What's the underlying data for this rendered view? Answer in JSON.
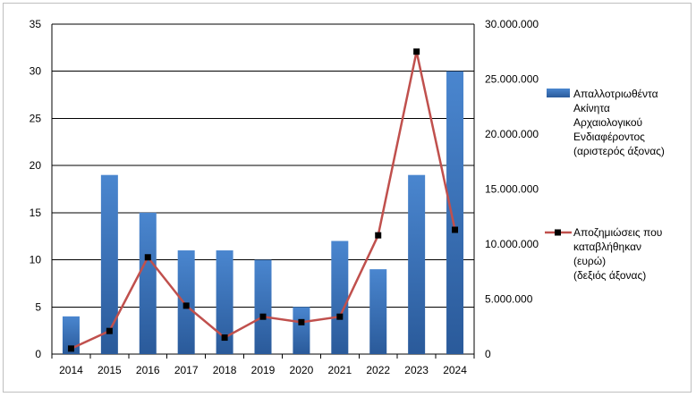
{
  "chart_data": {
    "type": "bar",
    "categories": [
      "2014",
      "2015",
      "2016",
      "2017",
      "2018",
      "2019",
      "2020",
      "2021",
      "2022",
      "2023",
      "2024"
    ],
    "series": [
      {
        "name": "Απαλλοτριωθέντα Ακίνητα Αρχαιολογικού Ενδιαφέροντος (αριστερός άξονας)",
        "type": "bar",
        "axis": "left",
        "values": [
          4,
          19,
          15,
          11,
          11,
          10,
          5,
          12,
          9,
          19,
          30
        ]
      },
      {
        "name": "Αποζημιώσεις που καταβλήθηκαν (ευρώ) (δεξιός άξονας)",
        "type": "line",
        "axis": "right",
        "values": [
          500000,
          2100000,
          8800000,
          4400000,
          1500000,
          3400000,
          2900000,
          3400000,
          10800000,
          27500000,
          11300000
        ]
      }
    ],
    "left_axis": {
      "min": 0,
      "max": 35,
      "ticks": [
        "0",
        "5",
        "10",
        "15",
        "20",
        "25",
        "30",
        "35"
      ]
    },
    "right_axis": {
      "min": 0,
      "max": 30000000,
      "ticks": [
        "0",
        "5.000.000",
        "10.000.000",
        "15.000.000",
        "20.000.000",
        "25.000.000",
        "30.000.000"
      ]
    },
    "legend": {
      "placement": "right",
      "bar_label_lines": [
        "Απαλλοτριωθέντα",
        "Ακίνητα",
        "Αρχαιολογικού",
        "Ενδιαφέροντος",
        "(αριστερός άξονας)"
      ],
      "line_label_lines": [
        "Αποζημιώσεις που",
        "καταβλήθηκαν",
        "(ευρώ)",
        "(δεξιός άξονας)"
      ]
    },
    "grid": true,
    "colors": {
      "bar_top": "#4a86cf",
      "bar_bottom": "#2a5a9a",
      "line": "#c0504d",
      "marker": "#000000",
      "grid": "#000000"
    }
  }
}
